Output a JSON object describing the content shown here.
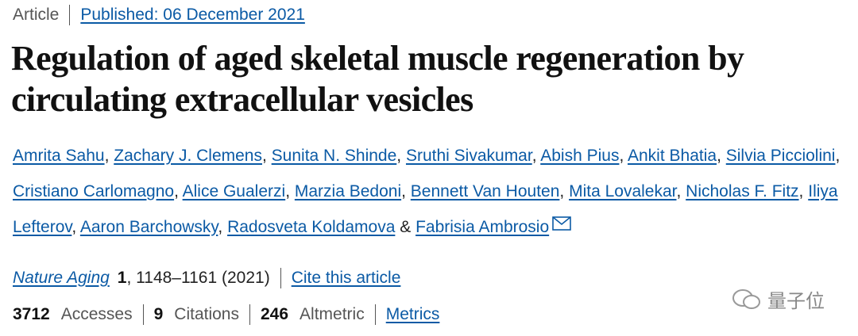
{
  "header": {
    "type": "Article",
    "published": "Published: 06 December 2021"
  },
  "title": "Regulation of aged skeletal muscle regeneration by circulating extracellular vesicles",
  "authors": {
    "names": [
      "Amrita Sahu",
      "Zachary J. Clemens",
      "Sunita N. Shinde",
      "Sruthi Sivakumar",
      "Abish Pius",
      "Ankit Bhatia",
      "Silvia Picciolini",
      "Cristiano Carlomagno",
      "Alice Gualerzi",
      "Marzia Bedoni",
      "Bennett Van Houten",
      "Mita Lovalekar",
      "Nicholas F. Fitz",
      "Iliya Lefterov",
      "Aaron Barchowsky",
      "Radosveta Koldamova",
      "Fabrisia Ambrosio"
    ],
    "separator": ",",
    "final_separator": "&"
  },
  "citation": {
    "journal": "Nature Aging",
    "volume": "1",
    "details": ", 1148–1161 (2021)",
    "cite_link": "Cite this article"
  },
  "metrics": {
    "items": [
      {
        "count": 3712,
        "label": "Accesses"
      },
      {
        "count": 9,
        "label": "Citations"
      },
      {
        "count": 246,
        "label": "Altmetric"
      }
    ],
    "link": "Metrics"
  },
  "watermark": "量子位"
}
